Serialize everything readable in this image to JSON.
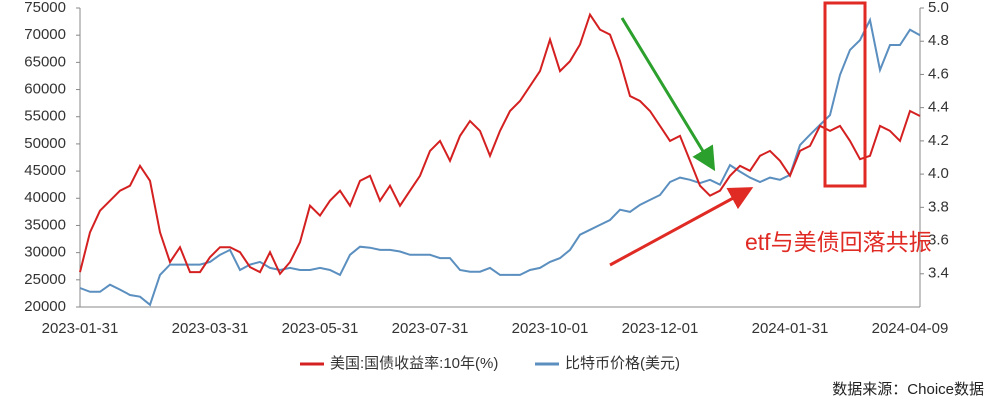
{
  "chart_data": {
    "type": "line",
    "categories": [
      "2023-01-31",
      null,
      null,
      null,
      null,
      null,
      null,
      null,
      null,
      null,
      null,
      null,
      null,
      "2023-03-31",
      null,
      null,
      null,
      null,
      null,
      null,
      null,
      null,
      null,
      null,
      "2023-05-31",
      null,
      null,
      null,
      null,
      null,
      null,
      null,
      null,
      null,
      null,
      "2023-07-31",
      null,
      null,
      null,
      null,
      null,
      null,
      null,
      null,
      null,
      null,
      null,
      "2023-10-01",
      null,
      null,
      null,
      null,
      null,
      null,
      null,
      null,
      null,
      null,
      "2023-12-01",
      null,
      null,
      null,
      null,
      null,
      null,
      null,
      null,
      null,
      null,
      null,
      null,
      "2024-01-31",
      null,
      null,
      null,
      null,
      null,
      null,
      null,
      null,
      null,
      null,
      null,
      "2024-04-09",
      null
    ],
    "series": [
      {
        "name": "美国:国债收益率:10年(%)",
        "color": "#d42020",
        "axis": "y2",
        "values": [
          3.41,
          3.65,
          3.78,
          3.84,
          3.9,
          3.93,
          4.05,
          3.96,
          3.65,
          3.47,
          3.56,
          3.41,
          3.41,
          3.5,
          3.56,
          3.56,
          3.53,
          3.44,
          3.41,
          3.53,
          3.4,
          3.47,
          3.59,
          3.81,
          3.75,
          3.84,
          3.9,
          3.81,
          3.96,
          3.99,
          3.84,
          3.93,
          3.81,
          3.9,
          3.99,
          4.14,
          4.2,
          4.08,
          4.23,
          4.32,
          4.26,
          4.11,
          4.26,
          4.38,
          4.44,
          4.53,
          4.62,
          4.81,
          4.62,
          4.68,
          4.78,
          4.96,
          4.87,
          4.84,
          4.68,
          4.47,
          4.44,
          4.38,
          4.29,
          4.2,
          4.23,
          4.08,
          3.93,
          3.87,
          3.9,
          3.99,
          4.05,
          4.02,
          4.11,
          4.14,
          4.08,
          3.99,
          4.14,
          4.17,
          4.29,
          4.26,
          4.29,
          4.2,
          4.09,
          4.11,
          4.29,
          4.26,
          4.2,
          4.38,
          4.35
        ]
      },
      {
        "name": "比特币价格(美元)",
        "color": "#5b8fbf",
        "values": [
          23500,
          22800,
          22800,
          24100,
          23200,
          22200,
          21900,
          20400,
          25900,
          27800,
          27800,
          27800,
          27800,
          28300,
          29600,
          30500,
          26800,
          27800,
          28300,
          27200,
          26800,
          27200,
          26800,
          26800,
          27200,
          26800,
          25900,
          29600,
          31100,
          30900,
          30500,
          30500,
          30200,
          29600,
          29600,
          29600,
          29000,
          29000,
          26800,
          26500,
          26500,
          27200,
          25900,
          25900,
          25900,
          26800,
          27200,
          28300,
          29000,
          30500,
          33300,
          34200,
          35100,
          36000,
          37900,
          37500,
          38800,
          39700,
          40600,
          43000,
          43800,
          43400,
          42800,
          43400,
          42500,
          46100,
          44900,
          43800,
          43000,
          43800,
          43400,
          44300,
          49800,
          51700,
          53500,
          55300,
          62700,
          67300,
          69100,
          72800,
          63600,
          68200,
          68200,
          71000,
          70000
        ]
      }
    ],
    "ylim": [
      20000,
      75000
    ],
    "yticks": [
      20000,
      25000,
      30000,
      35000,
      40000,
      45000,
      50000,
      55000,
      60000,
      65000,
      70000,
      75000
    ],
    "y2lim": [
      3.2,
      5.0
    ],
    "y2ticks": [
      3.4,
      3.6,
      3.8,
      {
        "value": 4,
        "label": "4.0"
      },
      4.2,
      4.4,
      4.6,
      4.8,
      {
        "value": 5,
        "label": "5.0"
      }
    ],
    "legend": "bottom",
    "annotation": "etf与美债回落共振",
    "source": "数据来源：Choice数据"
  }
}
